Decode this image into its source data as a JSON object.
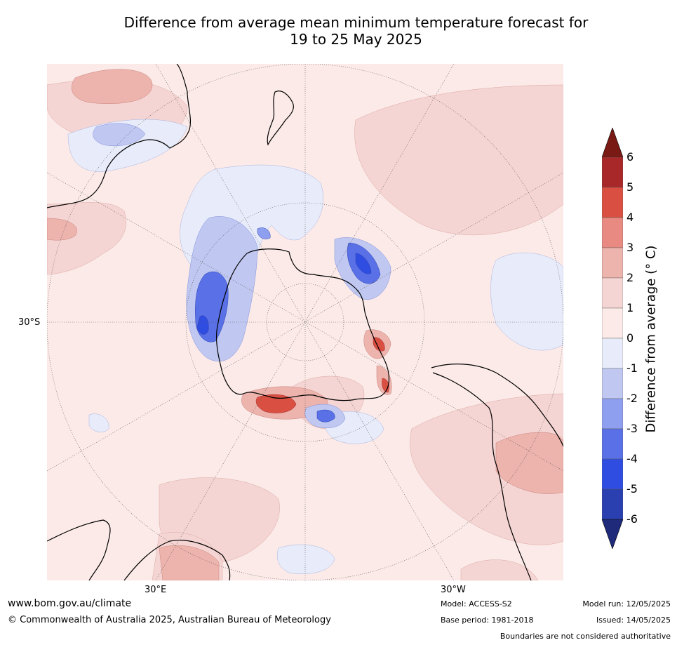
{
  "title": {
    "line1": "Difference from average mean minimum temperature forecast for",
    "line2": "19 to 25 May 2025"
  },
  "map": {
    "projection": "south-polar-stereographic",
    "lat_label": "30°S",
    "lon_labels": [
      "30°E",
      "30°W"
    ],
    "features": [
      "Antarctica",
      "Australia",
      "New Zealand",
      "South America",
      "Southern Africa"
    ]
  },
  "legend": {
    "title": "Difference from average (° C)",
    "ticks": [
      "6",
      "5",
      "4",
      "3",
      "2",
      "1",
      "0",
      "-1",
      "-2",
      "-3",
      "-4",
      "-5",
      "-6"
    ],
    "colors": [
      "#7a1a14",
      "#a8282a",
      "#d95043",
      "#e88a82",
      "#edb3ad",
      "#f5d5d3",
      "#fbeae8",
      "#e8ecfa",
      "#c0c8f2",
      "#8f9ff0",
      "#5a70e6",
      "#2f4de0",
      "#2a40b0",
      "#1f2b7a"
    ]
  },
  "footer": {
    "website": "www.bom.gov.au/climate",
    "copyright": "© Commonwealth of Australia 2025, Australian Bureau of Meteorology",
    "model": "Model: ACCESS-S2",
    "base_period": "Base period: 1981-2018",
    "model_run": "Model run: 12/05/2025",
    "issued": "Issued: 14/05/2025",
    "disclaimer": "Boundaries are not considered authoritative"
  }
}
